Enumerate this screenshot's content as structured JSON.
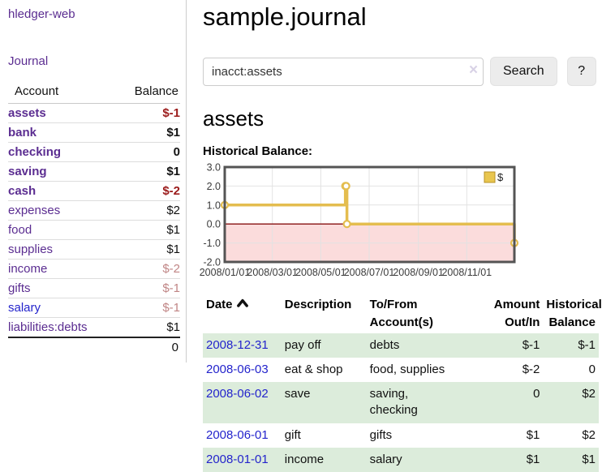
{
  "sidebar": {
    "app_title": "hledger-web",
    "nav": {
      "journal": "Journal"
    },
    "accounts_table": {
      "headers": {
        "account": "Account",
        "balance": "Balance"
      },
      "rows": [
        {
          "name": "assets",
          "depth": 1,
          "name_style": "bold-purple",
          "balance": "$-1",
          "balance_style": "neg-bold"
        },
        {
          "name": "bank",
          "depth": 2,
          "name_style": "bold-purple",
          "balance": "$1",
          "balance_style": "bold"
        },
        {
          "name": "checking",
          "depth": 3,
          "name_style": "bold-purple",
          "balance": "0",
          "balance_style": "bold"
        },
        {
          "name": "saving",
          "depth": 3,
          "name_style": "bold-purple",
          "balance": "$1",
          "balance_style": "bold"
        },
        {
          "name": "cash",
          "depth": 2,
          "name_style": "bold-purple",
          "balance": "$-2",
          "balance_style": "neg-bold"
        },
        {
          "name": "expenses",
          "depth": 1,
          "name_style": "purple",
          "balance": "$2",
          "balance_style": "plain"
        },
        {
          "name": "food",
          "depth": 2,
          "name_style": "purple",
          "balance": "$1",
          "balance_style": "plain"
        },
        {
          "name": "supplies",
          "depth": 2,
          "name_style": "purple",
          "balance": "$1",
          "balance_style": "plain"
        },
        {
          "name": "income",
          "depth": 1,
          "name_style": "purple",
          "balance": "$-2",
          "balance_style": "neg-faded"
        },
        {
          "name": "gifts",
          "depth": 2,
          "name_style": "purple",
          "balance": "$-1",
          "balance_style": "neg-faded"
        },
        {
          "name": "salary",
          "depth": 2,
          "name_style": "blue",
          "balance": "$-1",
          "balance_style": "neg-faded"
        },
        {
          "name": "liabilities:debts",
          "depth": 1,
          "name_style": "purple",
          "balance": "$1",
          "balance_style": "plain"
        }
      ],
      "total": "0"
    }
  },
  "main": {
    "title": "sample.journal",
    "search": {
      "value": "inacct:assets",
      "clear_icon": "×",
      "button": "Search",
      "help_button": "?"
    },
    "account_heading": "assets",
    "chart_heading": "Historical Balance:"
  },
  "chart_data": {
    "type": "line",
    "step": true,
    "title": "Historical Balance",
    "series": [
      {
        "name": "$",
        "color": "#e4bd4f",
        "points": [
          {
            "date": "2008/01/01",
            "day": 0,
            "value": 1
          },
          {
            "date": "2008/06/01",
            "day": 152,
            "value": 2
          },
          {
            "date": "2008/06/02",
            "day": 153,
            "value": 2
          },
          {
            "date": "2008/06/03",
            "day": 154,
            "value": 0
          },
          {
            "date": "2008/12/31",
            "day": 365,
            "value": -1
          }
        ]
      }
    ],
    "x_ticks": [
      {
        "label": "2008/01/01",
        "day": 0
      },
      {
        "label": "2008/03/01",
        "day": 60
      },
      {
        "label": "2008/05/01",
        "day": 121
      },
      {
        "label": "2008/07/01",
        "day": 182
      },
      {
        "label": "2008/09/01",
        "day": 244
      },
      {
        "label": "2008/11/01",
        "day": 305
      }
    ],
    "y_ticks": [
      3.0,
      2.0,
      1.0,
      0.0,
      -1.0,
      -2.0
    ],
    "ylim": [
      -2,
      3
    ],
    "xlim_days": [
      0,
      365
    ],
    "grid": true,
    "negative_region_color": "#fbdcdc",
    "zero_line_color": "#871111",
    "legend": {
      "label": "$",
      "position": "top-right",
      "swatch_color": "#e9c64f",
      "swatch_border": "#b89227"
    }
  },
  "transactions": {
    "headers": [
      {
        "line1": "Date",
        "line2": "",
        "align": "l",
        "sortable": true
      },
      {
        "line1": "Description",
        "line2": "",
        "align": "l"
      },
      {
        "line1": "To/From",
        "line2": "Account(s)",
        "align": "l"
      },
      {
        "line1": "Amount",
        "line2": "Out/In",
        "align": "r"
      },
      {
        "line1": "Historical",
        "line2": "Balance",
        "align": "r"
      }
    ],
    "rows": [
      {
        "date": "2008-12-31",
        "description": "pay off",
        "accounts": [
          "debts"
        ],
        "amount": "$-1",
        "amount_neg": true,
        "balance": "$-1",
        "balance_neg": true
      },
      {
        "date": "2008-06-03",
        "description": "eat & shop",
        "accounts": [
          "food, supplies"
        ],
        "amount": "$-2",
        "amount_neg": true,
        "balance": "0",
        "balance_neg": false
      },
      {
        "date": "2008-06-02",
        "description": "save",
        "accounts": [
          "saving,",
          "checking"
        ],
        "amount": "0",
        "amount_neg": false,
        "balance": "$2",
        "balance_neg": false
      },
      {
        "date": "2008-06-01",
        "description": "gift",
        "accounts": [
          "gifts"
        ],
        "amount": "$1",
        "amount_neg": false,
        "balance": "$2",
        "balance_neg": false
      },
      {
        "date": "2008-01-01",
        "description": "income",
        "accounts": [
          "salary"
        ],
        "amount": "$1",
        "amount_neg": false,
        "balance": "$1",
        "balance_neg": false
      }
    ]
  }
}
